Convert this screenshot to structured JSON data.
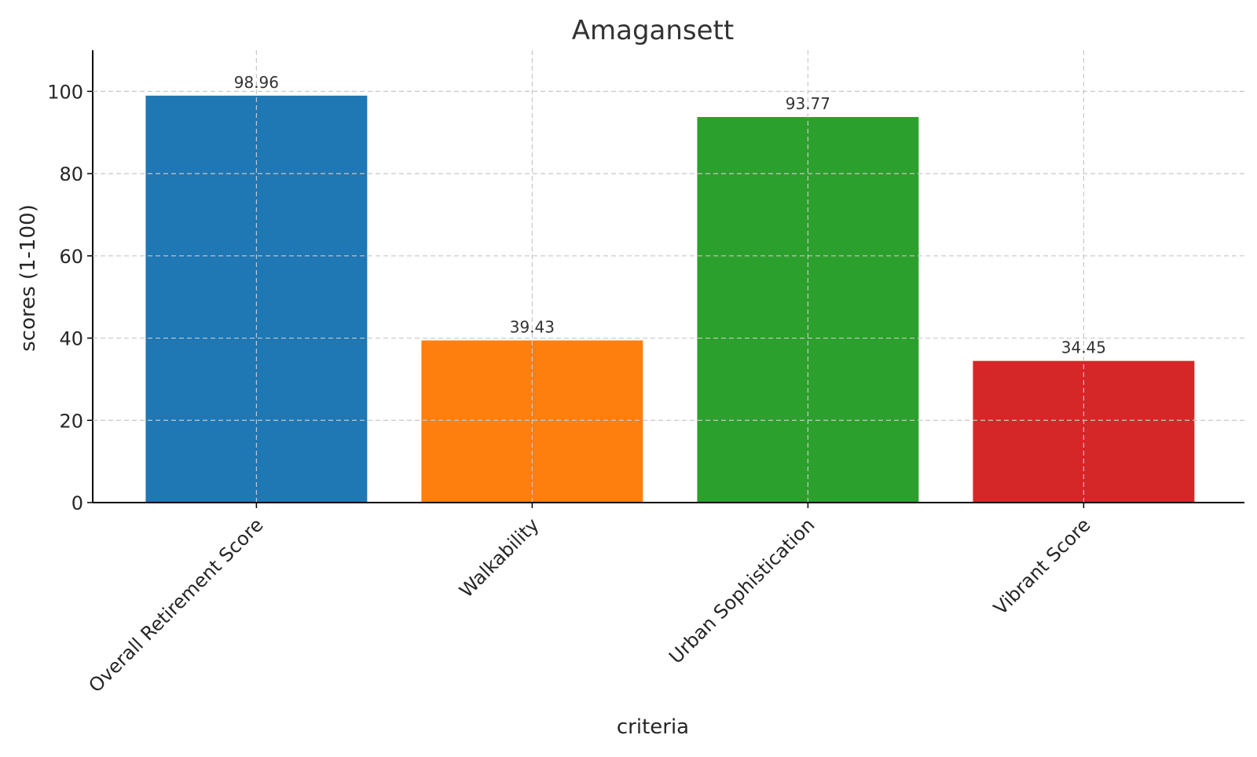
{
  "chart_data": {
    "type": "bar",
    "title": "Amagansett",
    "xlabel": "criteria",
    "ylabel": "scores (1-100)",
    "categories": [
      "Overall Retirement Score",
      "Walkability",
      "Urban Sophistication",
      "Vibrant Score"
    ],
    "values": [
      98.96,
      39.43,
      93.77,
      34.45
    ],
    "value_labels": [
      "98.96",
      "39.43",
      "93.77",
      "34.45"
    ],
    "colors": [
      "#1f77b4",
      "#ff7f0e",
      "#2ca02c",
      "#d62728"
    ],
    "ylim": [
      0,
      110
    ],
    "yticks": [
      0,
      20,
      40,
      60,
      80,
      100
    ],
    "ytick_labels": [
      "0",
      "20",
      "40",
      "60",
      "80",
      "100"
    ],
    "grid": true,
    "legend": false
  }
}
